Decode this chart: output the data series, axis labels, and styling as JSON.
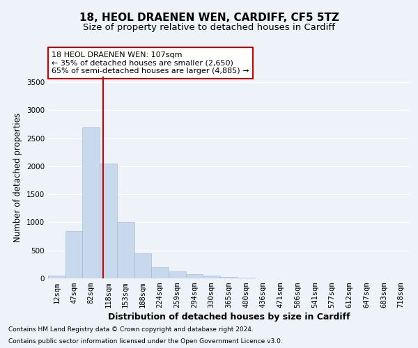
{
  "title1": "18, HEOL DRAENEN WEN, CARDIFF, CF5 5TZ",
  "title2": "Size of property relative to detached houses in Cardiff",
  "xlabel": "Distribution of detached houses by size in Cardiff",
  "ylabel": "Number of detached properties",
  "footnote1": "Contains HM Land Registry data © Crown copyright and database right 2024.",
  "footnote2": "Contains public sector information licensed under the Open Government Licence v3.0.",
  "bar_labels": [
    "12sqm",
    "47sqm",
    "82sqm",
    "118sqm",
    "153sqm",
    "188sqm",
    "224sqm",
    "259sqm",
    "294sqm",
    "330sqm",
    "365sqm",
    "400sqm",
    "436sqm",
    "471sqm",
    "506sqm",
    "541sqm",
    "577sqm",
    "612sqm",
    "647sqm",
    "683sqm",
    "718sqm"
  ],
  "bar_values": [
    50,
    850,
    2700,
    2050,
    1000,
    450,
    200,
    130,
    75,
    50,
    30,
    10,
    5,
    0,
    0,
    0,
    0,
    0,
    0,
    0,
    0
  ],
  "bar_color": "#c8d9ee",
  "bar_edgecolor": "#aabdd8",
  "red_line_color": "#cc0000",
  "annotation_text": "18 HEOL DRAENEN WEN: 107sqm\n← 35% of detached houses are smaller (2,650)\n65% of semi-detached houses are larger (4,885) →",
  "annotation_box_facecolor": "#ffffff",
  "annotation_box_edgecolor": "#cc0000",
  "ylim": [
    0,
    3600
  ],
  "yticks": [
    0,
    500,
    1000,
    1500,
    2000,
    2500,
    3000,
    3500
  ],
  "background_color": "#eef2f9",
  "plot_background": "#eef2f9",
  "grid_color": "#ffffff",
  "title1_fontsize": 11,
  "title2_fontsize": 9.5,
  "xlabel_fontsize": 9,
  "ylabel_fontsize": 8.5,
  "tick_fontsize": 7.5,
  "annotation_fontsize": 8
}
